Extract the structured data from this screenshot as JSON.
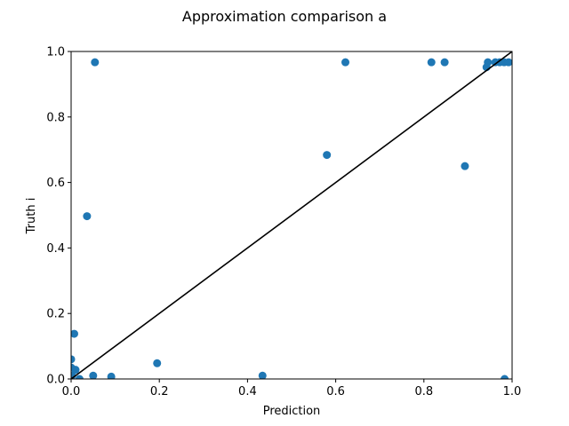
{
  "chart_data": {
    "type": "scatter",
    "title": "Approximation comparison a",
    "xlabel": "Prediction",
    "ylabel": "Truth i",
    "xlim": [
      0,
      1
    ],
    "ylim": [
      0,
      1
    ],
    "xticks": [
      "0.0",
      "0.2",
      "0.4",
      "0.6",
      "0.8",
      "1.0"
    ],
    "yticks": [
      "0.0",
      "0.2",
      "0.4",
      "0.6",
      "0.8",
      "1.0"
    ],
    "grid": false,
    "legend": "none",
    "marker_color": "#1f77b4",
    "reference_line": {
      "x": [
        0,
        1
      ],
      "y": [
        0,
        1
      ],
      "color": "#000000"
    },
    "points": [
      {
        "x": 0.054,
        "y": 0.967
      },
      {
        "x": 0.622,
        "y": 0.967
      },
      {
        "x": 0.817,
        "y": 0.967
      },
      {
        "x": 0.847,
        "y": 0.967
      },
      {
        "x": 0.945,
        "y": 0.967
      },
      {
        "x": 0.962,
        "y": 0.967
      },
      {
        "x": 0.972,
        "y": 0.967
      },
      {
        "x": 0.982,
        "y": 0.967
      },
      {
        "x": 0.992,
        "y": 0.967
      },
      {
        "x": 0.942,
        "y": 0.952
      },
      {
        "x": 0.58,
        "y": 0.684
      },
      {
        "x": 0.893,
        "y": 0.65
      },
      {
        "x": 0.036,
        "y": 0.497
      },
      {
        "x": 0.007,
        "y": 0.138
      },
      {
        "x": 0.0,
        "y": 0.06
      },
      {
        "x": 0.0,
        "y": 0.035
      },
      {
        "x": 0.01,
        "y": 0.028
      },
      {
        "x": 0.002,
        "y": 0.01
      },
      {
        "x": 0.019,
        "y": 0.0
      },
      {
        "x": 0.05,
        "y": 0.01
      },
      {
        "x": 0.091,
        "y": 0.007
      },
      {
        "x": 0.195,
        "y": 0.048
      },
      {
        "x": 0.434,
        "y": 0.01
      },
      {
        "x": 0.983,
        "y": 0.0
      }
    ]
  }
}
